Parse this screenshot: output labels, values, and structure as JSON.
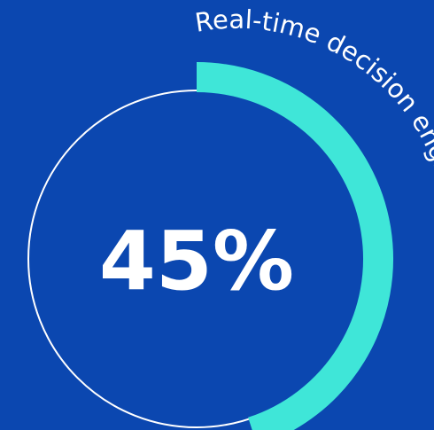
{
  "chart_data": {
    "type": "pie",
    "value_percent": 45,
    "value_label": "45%",
    "caption": "Real-time decision engines",
    "colors": {
      "background": "#0b47b0",
      "progress": "#3fe6d8",
      "track": "#ffffff",
      "text": "#ffffff"
    }
  }
}
